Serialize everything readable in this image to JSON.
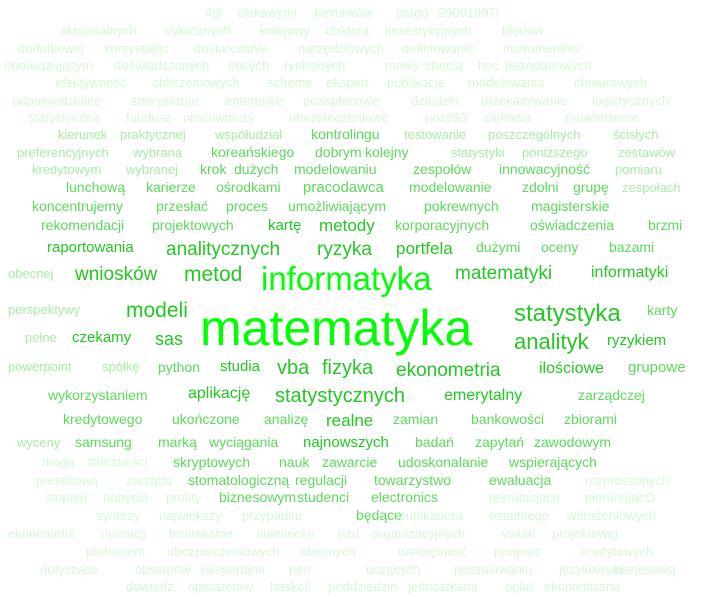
{
  "word_cloud": {
    "colors": {
      "faint": "#d8f7d8",
      "light": "#a8eca8",
      "medium": "#5cd95c",
      "strong": "#23c823",
      "bright": "#00ff00"
    },
    "lines": [
      [
        "4gl",
        "ciekawymi",
        "kierunków",
        "cargo",
        "29091997r"
      ],
      [
        "aktuarialnych",
        "cyklicznych",
        "kolejowy",
        "doktora",
        "inwestycyjnych",
        "błędów"
      ],
      [
        "dodatkowej",
        "korzystając",
        "dostarczanie",
        "narzędziowych",
        "definiowanie",
        "instrumentów"
      ],
      [
        "obowiązującym",
        "doświadczonych",
        "obcych",
        "rynkowych",
        "mowy",
        "chęcią",
        "hoc",
        "bazodanowych"
      ],
      [
        "efektywność",
        "obliczeniowych",
        "scheme",
        "ekspert",
        "publikacje",
        "modelowania",
        "chmurowych"
      ],
      [
        "odpowiedzialne",
        "specjalizuje",
        "enterprise",
        "pozapłacowe",
        "dziedzin",
        "przekazywanie",
        "logistycznych"
      ],
      [
        "statystyczna",
        "fundusz",
        "pracowniczy",
        "ubezpieczeniowe",
        "poz883",
        "ciekawa",
        "prowadzenie"
      ],
      [
        "kierunek",
        "praktycznej",
        "współudział",
        "kontrolingu",
        "testowanie",
        "poszczególnych",
        "ścisłych"
      ],
      [
        "preferencyjnych",
        "wybrana",
        "koreańskiego",
        "dobrym",
        "kolejny",
        "statystyki",
        "poniższego",
        "zestawów"
      ],
      [
        "kredytowym",
        "wybranej",
        "krok",
        "dużych",
        "modelowaniu",
        "zespołów",
        "innowacyjność",
        "pomiaru"
      ],
      [
        "lunchową",
        "karierze",
        "ośrodkami",
        "pracodawca",
        "modelowanie",
        "zdolni",
        "grupę",
        "zespołach"
      ],
      [
        "koncentrujemy",
        "przesłać",
        "proces",
        "umożliwiającym",
        "pokrewnych",
        "magisterskie"
      ],
      [
        "rekomendacji",
        "projektowych",
        "kartę",
        "metody",
        "korporacyjnych",
        "oświadczenia",
        "brzmi"
      ],
      [
        "raportowania",
        "analitycznych",
        "ryzyka",
        "portfela",
        "dużymi",
        "oceny",
        "bazami"
      ],
      [
        "obecnej",
        "wniosków",
        "metod",
        "informatyka",
        "matematyki",
        "informatyki"
      ],
      [
        "perspektywy",
        "modeli",
        "statystyka",
        "karty"
      ],
      [
        "matematyka"
      ],
      [
        "pełne",
        "czekamy",
        "sas",
        "analityk",
        "ryzykiem"
      ],
      [
        "powerpoint",
        "spółkę",
        "python",
        "studia",
        "vba",
        "fizyka",
        "ekonometria",
        "ilościowe",
        "grupowe"
      ],
      [
        "wykorzystaniem",
        "aplikację",
        "statystycznych",
        "emerytalny",
        "zarządczej"
      ],
      [
        "kredytowego",
        "ukończone",
        "analizę",
        "realne",
        "zamian",
        "bankowości",
        "zbiorami"
      ],
      [
        "wyceny",
        "samsung",
        "marką",
        "wyciągania",
        "najnowszych",
        "badań",
        "zapytań",
        "zawodowym"
      ],
      [
        "mogą",
        "zależności",
        "skryptowych",
        "nauk",
        "zawarcie",
        "udoskonalanie",
        "wspierających"
      ],
      [
        "prestiżową",
        "zarządu",
        "stomatologiczną",
        "regulacji",
        "towarzystwo",
        "ewaluacja",
        "rozproszonych"
      ],
      [
        "stopień",
        "nabycia",
        "profity",
        "biznesowym",
        "studenci",
        "electronics",
        "rekrutacjach",
        "piorunującO"
      ],
      [
        "syntezy",
        "największy",
        "przypadku",
        "będące",
        "pzuplkariera",
        "ostatniego",
        "wdrożeniowych"
      ],
      [
        "ekonometrii",
        "operacji",
        "trenowanie",
        "niemiecko",
        "pzu",
        "organizacyjnych",
        "visual",
        "projektowej"
      ],
      [
        "partnerem",
        "ubezpieczeniowych",
        "obecnych",
        "umiejętność",
        "prognoz",
        "kredytowych"
      ],
      [
        "dotyczące",
        "obszarów",
        "ekspertami",
        "perl",
        "uczących",
        "poszukiwaniu",
        "językowym",
        "biznesową"
      ],
      [
        "dowiedz",
        "operatorów",
        "haskell",
        "poddziedzin",
        "jednostkami",
        "opłat",
        "ekonomiczna"
      ]
    ]
  }
}
